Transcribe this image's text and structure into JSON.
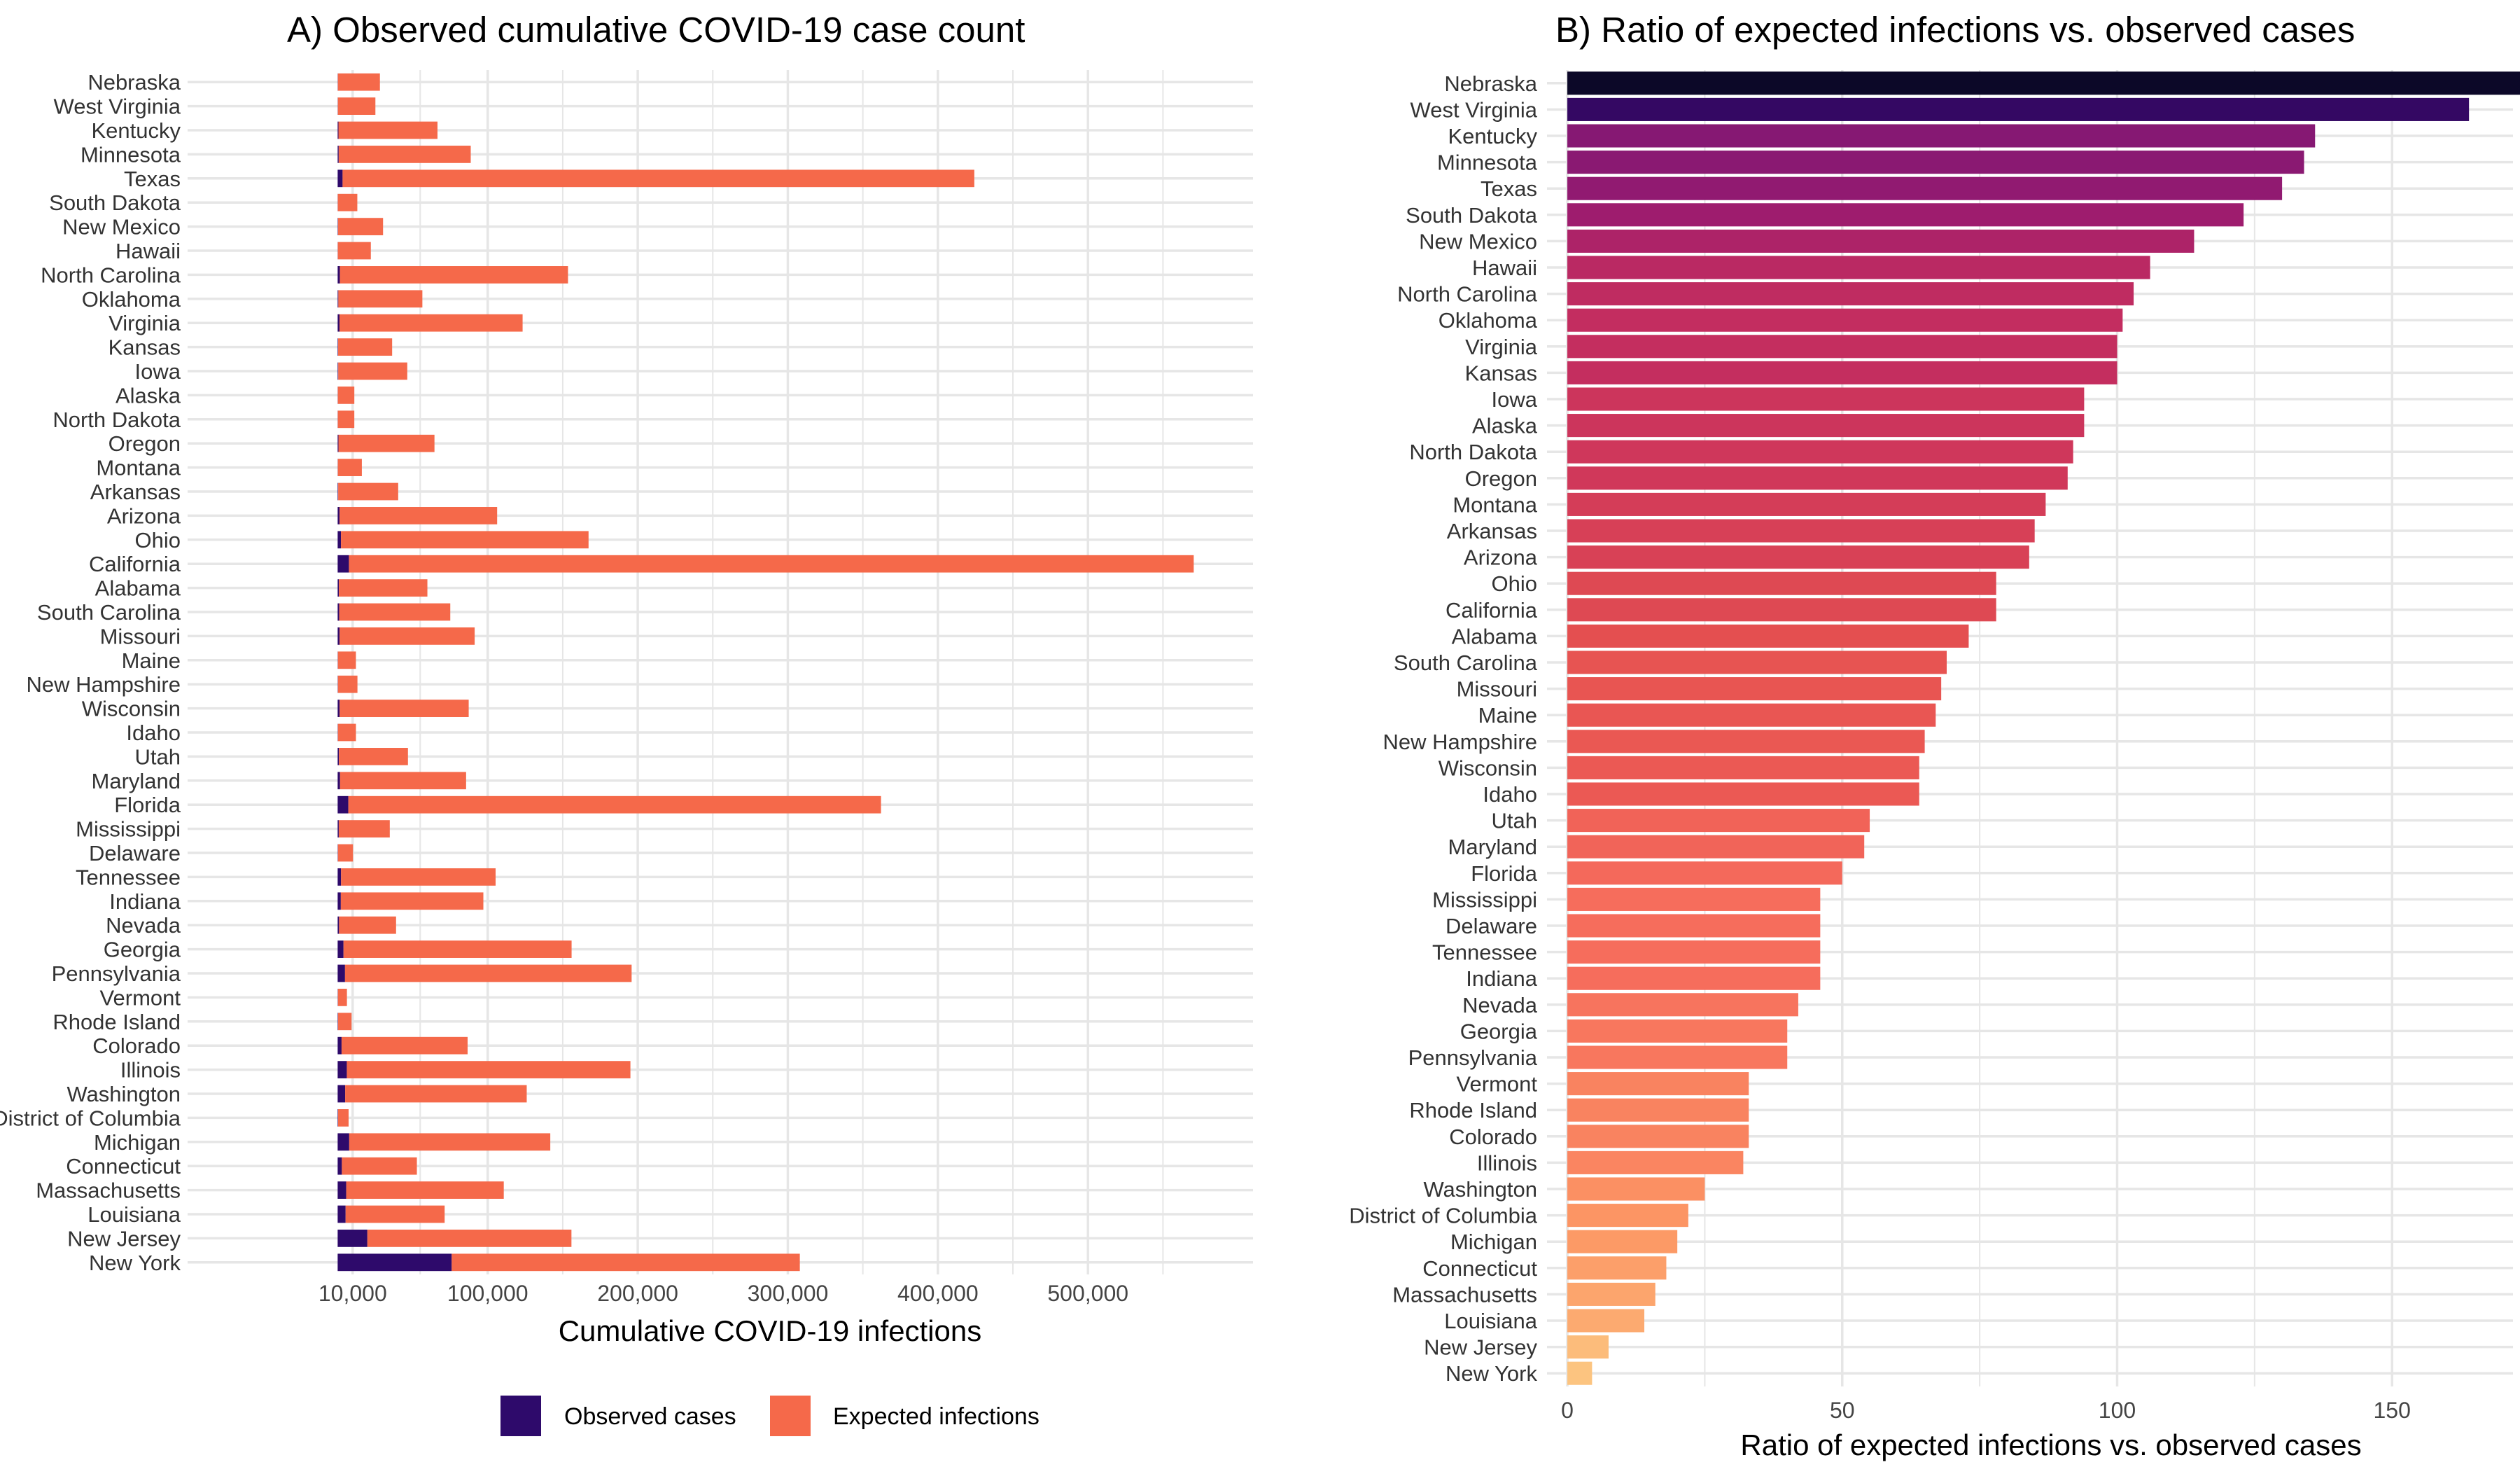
{
  "chart_data": [
    {
      "type": "bar",
      "orientation": "horizontal",
      "stacked": true,
      "title": "A) Observed cumulative COVID-19 case count",
      "xlabel": "Cumulative COVID-19 infections",
      "ylabel": "",
      "xlim": [
        -100000,
        610000
      ],
      "x_ticks": [
        10000,
        100000,
        200000,
        300000,
        400000,
        500000
      ],
      "x_tick_labels": [
        "10,000",
        "100,000",
        "200,000",
        "300,000",
        "400,000",
        "500,000"
      ],
      "grid": true,
      "legend_position": "bottom",
      "categories": [
        "Nebraska",
        "West Virginia",
        "Kentucky",
        "Minnesota",
        "Texas",
        "South Dakota",
        "New Mexico",
        "Hawaii",
        "North Carolina",
        "Oklahoma",
        "Virginia",
        "Kansas",
        "Iowa",
        "Alaska",
        "North Dakota",
        "Oregon",
        "Montana",
        "Arkansas",
        "Arizona",
        "Ohio",
        "California",
        "Alabama",
        "South Carolina",
        "Missouri",
        "Maine",
        "New Hampshire",
        "Wisconsin",
        "Idaho",
        "Utah",
        "Maryland",
        "Florida",
        "Mississippi",
        "Delaware",
        "Tennessee",
        "Indiana",
        "Nevada",
        "Georgia",
        "Pennsylvania",
        "Vermont",
        "Rhode Island",
        "Colorado",
        "Illinois",
        "Washington",
        "District of Columbia",
        "Michigan",
        "Connecticut",
        "Massachusetts",
        "Louisiana",
        "New Jersey",
        "New York"
      ],
      "series": [
        {
          "name": "Observed cases",
          "color": "#2e0a6b",
          "values": [
            160,
            150,
            530,
            690,
            3280,
            100,
            250,
            110,
            1500,
            450,
            1250,
            300,
            390,
            110,
            100,
            520,
            120,
            340,
            1280,
            2200,
            7500,
            800,
            1050,
            1300,
            170,
            190,
            1330,
            190,
            850,
            1600,
            7100,
            730,
            210,
            2250,
            2100,
            930,
            3900,
            4900,
            190,
            270,
            2600,
            6100,
            5000,
            290,
            7700,
            2800,
            5700,
            5300,
            19800,
            76000
          ]
        },
        {
          "name": "Expected infections",
          "color": "#f5694a",
          "values": [
            28000,
            25000,
            66000,
            88000,
            421000,
            13000,
            30000,
            22000,
            152000,
            56000,
            122000,
            36000,
            46000,
            11000,
            11000,
            64000,
            16000,
            40000,
            105000,
            165000,
            563000,
            59000,
            74000,
            90000,
            12000,
            13000,
            86000,
            12000,
            46000,
            84000,
            355000,
            34000,
            10000,
            103000,
            95000,
            38000,
            152000,
            191000,
            6000,
            9000,
            84000,
            189000,
            121000,
            7000,
            134000,
            50000,
            105000,
            66000,
            136000,
            232000
          ]
        }
      ]
    },
    {
      "type": "bar",
      "orientation": "horizontal",
      "title": "B) Ratio of expected infections vs. observed cases",
      "xlabel": "Ratio of expected infections vs. observed cases",
      "ylabel": "",
      "xlim": [
        -3.7,
        172
      ],
      "x_ticks": [
        0,
        50,
        100,
        150
      ],
      "x_tick_labels": [
        "0",
        "50",
        "100",
        "150"
      ],
      "grid": true,
      "color_scale": "magma",
      "categories": [
        "Nebraska",
        "West Virginia",
        "Kentucky",
        "Minnesota",
        "Texas",
        "South Dakota",
        "New Mexico",
        "Hawaii",
        "North Carolina",
        "Oklahoma",
        "Virginia",
        "Kansas",
        "Iowa",
        "Alaska",
        "North Dakota",
        "Oregon",
        "Montana",
        "Arkansas",
        "Arizona",
        "Ohio",
        "California",
        "Alabama",
        "South Carolina",
        "Missouri",
        "Maine",
        "New Hampshire",
        "Wisconsin",
        "Idaho",
        "Utah",
        "Maryland",
        "Florida",
        "Mississippi",
        "Delaware",
        "Tennessee",
        "Indiana",
        "Nevada",
        "Georgia",
        "Pennsylvania",
        "Vermont",
        "Rhode Island",
        "Colorado",
        "Illinois",
        "Washington",
        "District of Columbia",
        "Michigan",
        "Connecticut",
        "Massachusetts",
        "Louisiana",
        "New Jersey",
        "New York"
      ],
      "values": [
        174,
        164,
        136,
        134,
        130,
        123,
        114,
        106,
        103,
        101,
        100,
        100,
        94,
        94,
        92,
        91,
        87,
        85,
        84,
        78,
        78,
        73,
        69,
        68,
        67,
        65,
        64,
        64,
        55,
        54,
        50,
        46,
        46,
        46,
        46,
        42,
        40,
        40,
        33,
        33,
        33,
        32,
        25,
        22,
        20,
        18,
        16,
        14,
        7.5,
        4.5
      ]
    }
  ]
}
